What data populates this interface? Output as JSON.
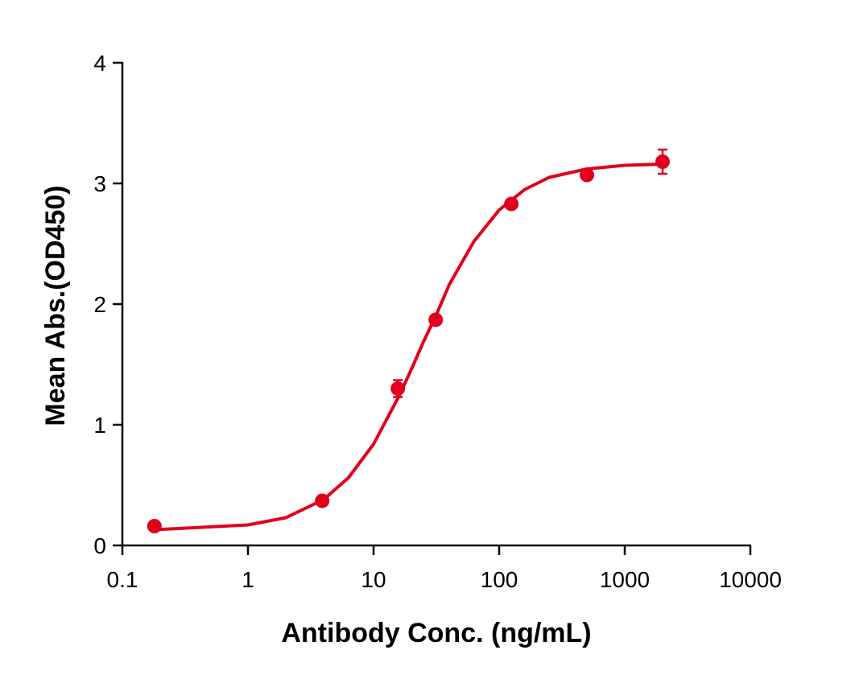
{
  "chart_data": {
    "type": "scatter",
    "xlabel": "Antibody Conc. (ng/mL)",
    "ylabel": "Mean Abs.(OD450)",
    "xscale": "log",
    "xlim": [
      0.1,
      10000
    ],
    "xticks": [
      0.1,
      1,
      10,
      100,
      1000,
      10000
    ],
    "ylim": [
      0,
      4
    ],
    "yticks": [
      0,
      1,
      2,
      3,
      4
    ],
    "color": "#e0001b",
    "x": [
      0.18,
      3.9,
      15.6,
      31.25,
      125,
      500,
      2000
    ],
    "values": [
      0.16,
      0.37,
      1.3,
      1.87,
      2.83,
      3.07,
      3.18
    ],
    "errors": [
      0.01,
      0.01,
      0.07,
      0.02,
      0.02,
      0.02,
      0.1
    ],
    "curve": {
      "x": [
        0.18,
        1,
        2,
        4,
        6.3,
        10,
        16,
        20,
        25,
        31.25,
        40,
        63,
        100,
        160,
        250,
        500,
        1000,
        2000
      ],
      "values": [
        0.13,
        0.17,
        0.23,
        0.38,
        0.56,
        0.84,
        1.24,
        1.46,
        1.69,
        1.9,
        2.16,
        2.52,
        2.78,
        2.95,
        3.05,
        3.12,
        3.15,
        3.16
      ]
    }
  }
}
